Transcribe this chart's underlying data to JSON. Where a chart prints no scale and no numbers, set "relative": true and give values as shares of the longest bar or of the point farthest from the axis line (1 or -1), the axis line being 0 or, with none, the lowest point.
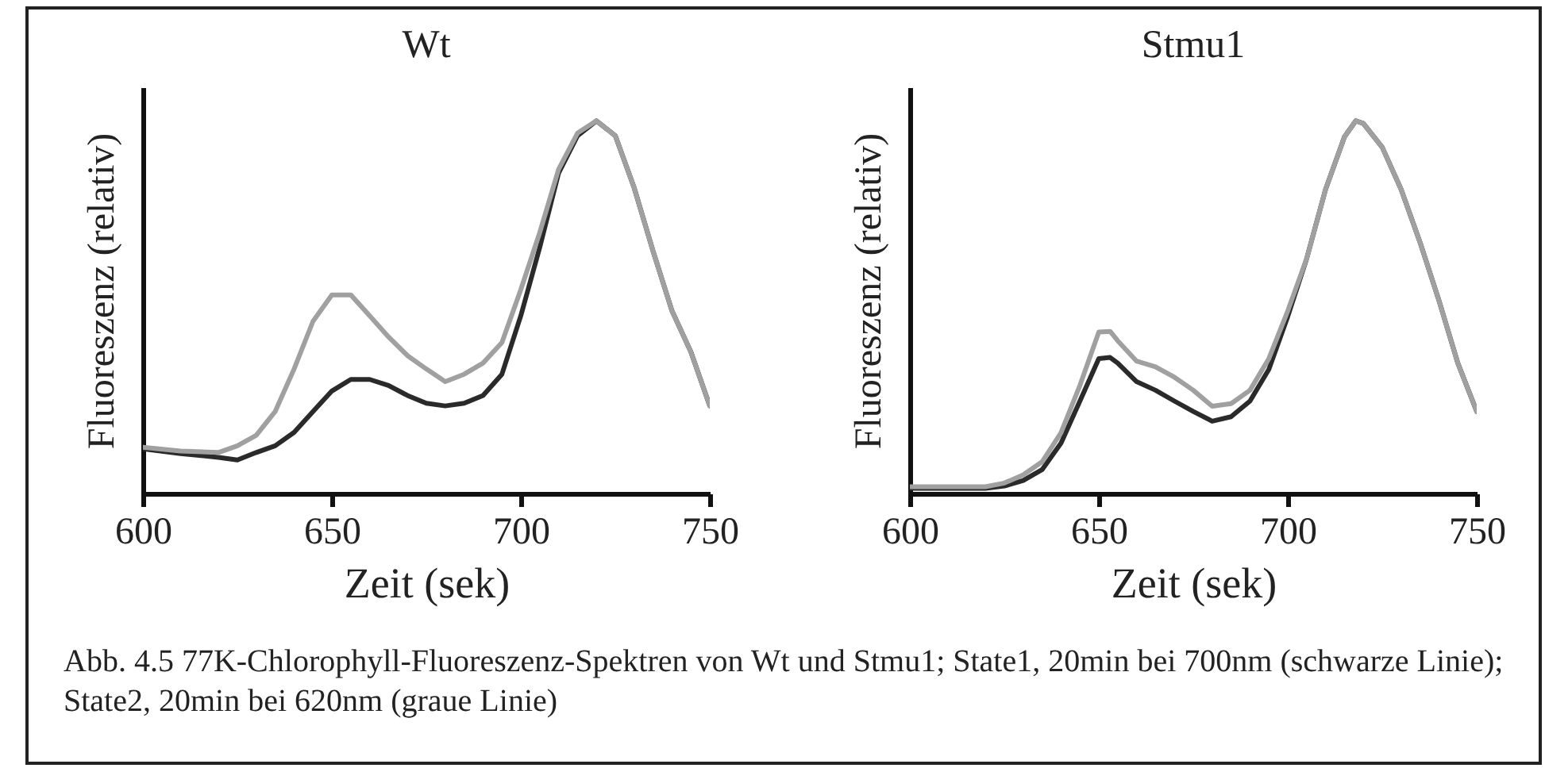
{
  "chart_data": [
    {
      "type": "line",
      "title": "Wt",
      "xlabel": "Zeit (sek)",
      "ylabel": "Fluoreszenz (relativ)",
      "relative": true,
      "xlim": [
        600,
        750
      ],
      "xticks": [
        600,
        650,
        700,
        750
      ],
      "x": [
        600,
        610,
        620,
        625,
        630,
        635,
        640,
        645,
        650,
        655,
        660,
        665,
        670,
        675,
        680,
        685,
        690,
        695,
        700,
        705,
        710,
        715,
        720,
        725,
        730,
        735,
        740,
        745,
        750
      ],
      "series": [
        {
          "color": "#2a2a2a",
          "values": [
            0.12,
            0.107,
            0.097,
            0.09,
            0.11,
            0.128,
            0.164,
            0.22,
            0.275,
            0.306,
            0.306,
            0.29,
            0.263,
            0.242,
            0.235,
            0.242,
            0.263,
            0.32,
            0.477,
            0.66,
            0.86,
            0.96,
            1.0,
            0.96,
            0.82,
            0.65,
            0.49,
            0.38,
            0.235
          ]
        },
        {
          "color": "#a0a0a0",
          "values": [
            0.124,
            0.114,
            0.11,
            0.128,
            0.156,
            0.22,
            0.334,
            0.462,
            0.533,
            0.533,
            0.477,
            0.42,
            0.37,
            0.334,
            0.3,
            0.32,
            0.35,
            0.405,
            0.547,
            0.7,
            0.87,
            0.967,
            1.0,
            0.96,
            0.82,
            0.65,
            0.49,
            0.38,
            0.235
          ]
        }
      ],
      "annotations": [
        "Abb. 4.5 77K-Chlorophyll-Fluoreszenz-Spektren von Wt und Stmu1; State1, 20min bei 700nm (schwarze Linie); State2, 20min bei 620nm (graue Linie)"
      ]
    },
    {
      "type": "line",
      "title": "Stmu1",
      "xlabel": "Zeit (sek)",
      "ylabel": "Fluoreszenz (relativ)",
      "relative": true,
      "xlim": [
        600,
        750
      ],
      "xticks": [
        600,
        650,
        700,
        750
      ],
      "x": [
        600,
        620,
        625,
        630,
        635,
        640,
        645,
        650,
        653,
        655,
        660,
        665,
        670,
        675,
        680,
        685,
        690,
        695,
        700,
        705,
        710,
        715,
        718,
        720,
        725,
        730,
        735,
        740,
        745,
        750
      ],
      "series": [
        {
          "color": "#2a2a2a",
          "values": [
            0.014,
            0.014,
            0.02,
            0.035,
            0.064,
            0.135,
            0.248,
            0.362,
            0.365,
            0.35,
            0.3,
            0.277,
            0.248,
            0.22,
            0.194,
            0.206,
            0.248,
            0.333,
            0.475,
            0.63,
            0.816,
            0.957,
            1.0,
            0.993,
            0.929,
            0.816,
            0.674,
            0.518,
            0.35,
            0.22
          ]
        },
        {
          "color": "#a0a0a0",
          "values": [
            0.018,
            0.018,
            0.028,
            0.05,
            0.085,
            0.163,
            0.29,
            0.433,
            0.435,
            0.41,
            0.355,
            0.34,
            0.312,
            0.277,
            0.234,
            0.241,
            0.277,
            0.362,
            0.49,
            0.63,
            0.816,
            0.957,
            1.0,
            0.993,
            0.929,
            0.816,
            0.674,
            0.518,
            0.35,
            0.22
          ]
        }
      ]
    }
  ]
}
